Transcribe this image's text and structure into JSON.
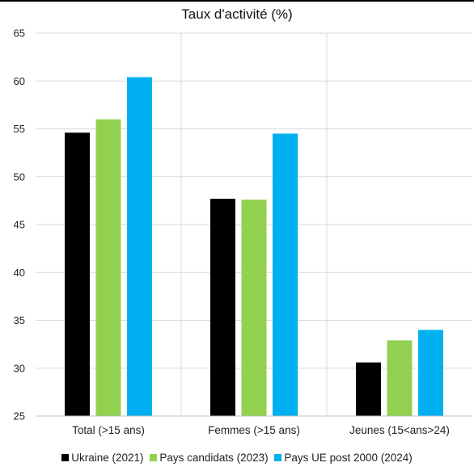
{
  "chart_data": {
    "type": "bar",
    "title": "Taux d'activité (%)",
    "categories": [
      "Total (>15 ans)",
      "Femmes (>15 ans)",
      "Jeunes (15<ans>24)"
    ],
    "series": [
      {
        "name": "Ukraine (2021)",
        "color": "#000000",
        "values": [
          54.6,
          47.7,
          30.6
        ]
      },
      {
        "name": "Pays candidats (2023)",
        "color": "#92d050",
        "values": [
          56.0,
          47.6,
          32.9
        ]
      },
      {
        "name": "Pays UE post 2000 (2024)",
        "color": "#00b0f0",
        "values": [
          60.4,
          54.5,
          34.0
        ]
      }
    ],
    "ylim": [
      25,
      65
    ],
    "yticks": [
      25,
      30,
      35,
      40,
      45,
      50,
      55,
      60,
      65
    ],
    "grid": true,
    "legend_position": "bottom",
    "xlabel": "",
    "ylabel": ""
  }
}
